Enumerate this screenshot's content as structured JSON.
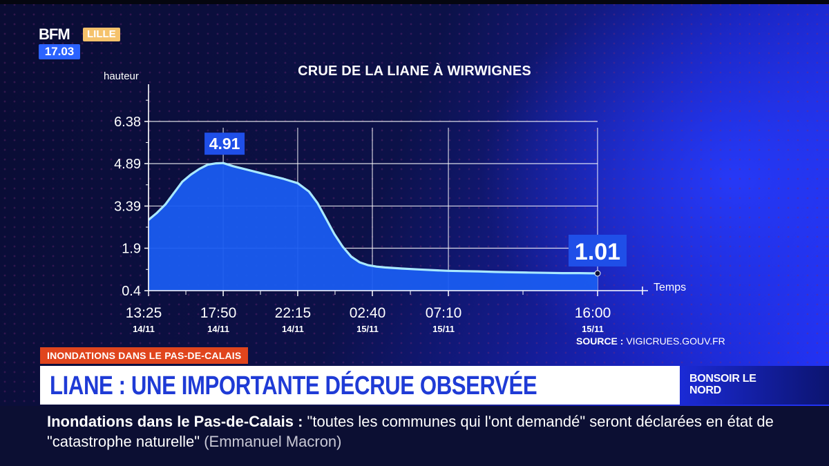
{
  "broadcast": {
    "logo": "BFM",
    "city": "LILLE",
    "time": "17.03"
  },
  "chart_data": {
    "type": "area",
    "title": "CRUE DE LA LIANE À WIRWIGNES",
    "ylabel": "hauteur",
    "xlabel": "Temps",
    "ylim": [
      0.4,
      7.5
    ],
    "y_ticks": [
      "0.4",
      "1.9",
      "3.39",
      "4.89",
      "6.38"
    ],
    "x_ticks": [
      {
        "time": "13:25",
        "date": "14/11"
      },
      {
        "time": "17:50",
        "date": "14/11"
      },
      {
        "time": "22:15",
        "date": "14/11"
      },
      {
        "time": "02:40",
        "date": "15/11"
      },
      {
        "time": "07:10",
        "date": "15/11"
      },
      {
        "time": "16:00",
        "date": "15/11"
      }
    ],
    "x_tick_hours": [
      0,
      4.42,
      8.83,
      13.25,
      17.75,
      26.58
    ],
    "xlim": [
      0,
      26.58
    ],
    "series": [
      {
        "x": [
          0,
          0.5,
          1.0,
          1.5,
          2.0,
          2.5,
          3.0,
          3.5,
          4.0,
          4.42,
          5.0,
          6.0,
          7.0,
          8.0,
          8.83,
          9.5,
          10.0,
          10.5,
          11.0,
          11.5,
          12.0,
          12.5,
          13.0,
          13.5,
          14.0,
          15.0,
          16.0,
          17.0,
          17.75,
          18.5,
          19.5,
          20.5,
          21.5,
          22.5,
          23.5,
          24.5,
          25.5,
          26.58
        ],
        "y": [
          2.9,
          3.15,
          3.45,
          3.85,
          4.25,
          4.5,
          4.7,
          4.85,
          4.9,
          4.91,
          4.8,
          4.65,
          4.5,
          4.35,
          4.2,
          3.9,
          3.5,
          2.95,
          2.4,
          1.95,
          1.6,
          1.4,
          1.3,
          1.25,
          1.22,
          1.18,
          1.15,
          1.12,
          1.1,
          1.09,
          1.08,
          1.06,
          1.05,
          1.04,
          1.03,
          1.02,
          1.02,
          1.01
        ]
      }
    ],
    "annotations": [
      {
        "text": "4.91",
        "x": 4.42,
        "y": 4.91
      },
      {
        "text": "1.01",
        "x": 26.58,
        "y": 1.01
      }
    ],
    "colors": {
      "fill": "#1a5cf0",
      "line": "#a9e9ff",
      "grid": "#ffffff",
      "label_bg": "#1f4fe8"
    },
    "grid": true
  },
  "source": {
    "label": "SOURCE :",
    "value": "VIGICRUES.GOUV.FR"
  },
  "lower_third": {
    "kicker": "INONDATIONS DANS LE PAS-DE-CALAIS",
    "headline": "LIANE : UNE IMPORTANTE DÉCRUE OBSERVÉE",
    "show": "BONSOIR LE NORD"
  },
  "ticker": {
    "topic": "Inondations dans le Pas-de-Calais :",
    "quote": "\"toutes les communes qui l'ont demandé\" seront déclarées en état de \"catastrophe naturelle\"",
    "speaker": "(Emmanuel Macron)"
  }
}
